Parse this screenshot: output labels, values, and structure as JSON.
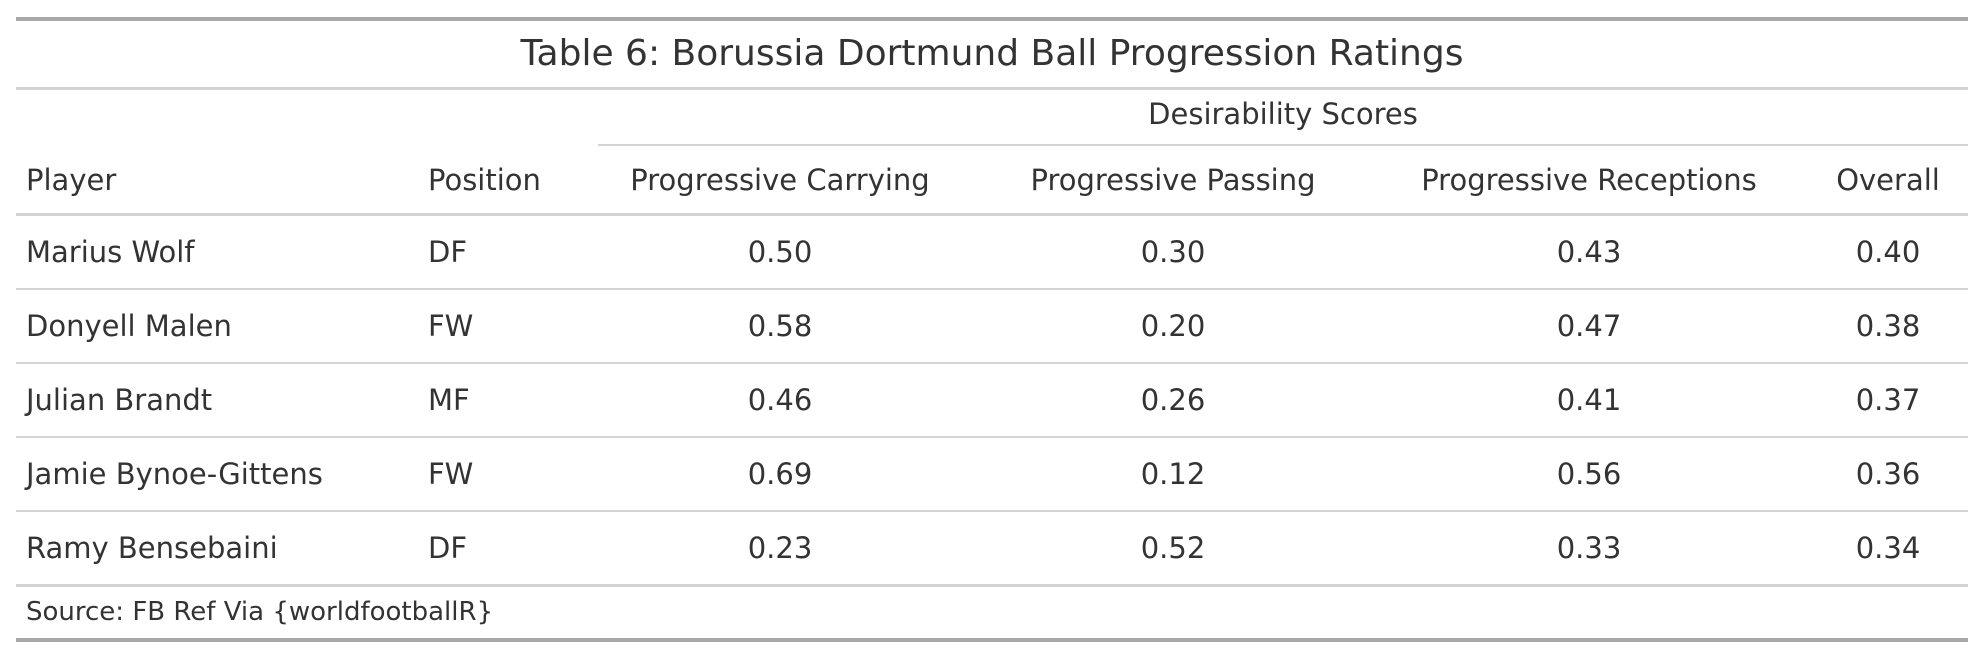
{
  "table": {
    "title": "Table 6: Borussia Dortmund Ball Progression Ratings",
    "spanner": "Desirability Scores",
    "columns": [
      "Player",
      "Position",
      "Progressive Carrying",
      "Progressive Passing",
      "Progressive Receptions",
      "Overall"
    ],
    "rows": [
      {
        "player": "Marius Wolf",
        "position": "DF",
        "carrying": "0.50",
        "passing": "0.30",
        "receptions": "0.43",
        "overall": "0.40"
      },
      {
        "player": "Donyell Malen",
        "position": "FW",
        "carrying": "0.58",
        "passing": "0.20",
        "receptions": "0.47",
        "overall": "0.38"
      },
      {
        "player": "Julian Brandt",
        "position": "MF",
        "carrying": "0.46",
        "passing": "0.26",
        "receptions": "0.41",
        "overall": "0.37"
      },
      {
        "player": "Jamie Bynoe-Gittens",
        "position": "FW",
        "carrying": "0.69",
        "passing": "0.12",
        "receptions": "0.56",
        "overall": "0.36"
      },
      {
        "player": "Ramy Bensebaini",
        "position": "DF",
        "carrying": "0.23",
        "passing": "0.52",
        "receptions": "0.33",
        "overall": "0.34"
      }
    ],
    "source_note": "Source: FB Ref Via {worldfootballR}"
  },
  "colors": {
    "text": "#333333",
    "rule_outer": "#a8a8a8",
    "rule_inner": "#d3d3d3",
    "background": "#ffffff"
  }
}
